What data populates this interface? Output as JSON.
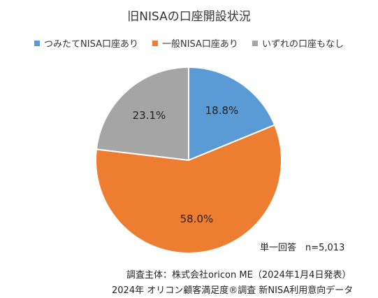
{
  "chart_data": {
    "type": "pie",
    "title": "旧NISAの口座開設状況",
    "categories": [
      "つみたてNISA口座あり",
      "一般NISA口座あり",
      "いずれの口座もなし"
    ],
    "values": [
      18.8,
      58.0,
      23.1
    ],
    "labels": [
      "18.8%",
      "58.0%",
      "23.1%"
    ],
    "colors": [
      "#5b9bd5",
      "#ed7d31",
      "#a5a5a5"
    ],
    "legend_position": "top",
    "start_angle_deg": 0,
    "direction": "clockwise"
  },
  "notes": {
    "sample": "単一回答　n=5,013",
    "source_line1": "調査主体：株式会社oricon ME（2024年1月4日発表）",
    "source_line2": "2024年 オリコン顧客満足度®調査 新NISA利用意向データ"
  }
}
